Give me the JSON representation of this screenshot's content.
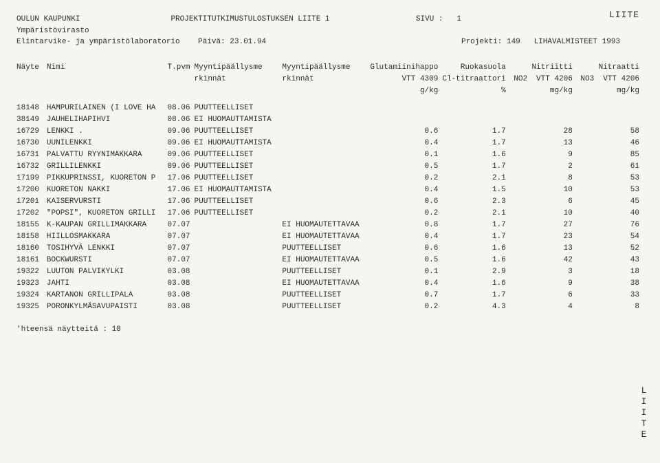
{
  "topRight": "LIITE",
  "sideRight": "LIITE",
  "header": {
    "org1": "OULUN KAUPUNKI",
    "org2": "Ympäristövirasto",
    "org3": "Elintarvike- ja ympäristölaboratorio",
    "docTitle": "PROJEKTITUTKIMUSTULOSTUKSEN LIITE 1",
    "dateLabel": "Päivä:",
    "dateValue": "23.01.94",
    "pageLabel": "SIVU :",
    "pageValue": "1",
    "projektiLabel": "Projekti:",
    "projektiValue": "149",
    "projektiName": "LIHAVALMISTEET 1993"
  },
  "columns": {
    "c1": "Näyte",
    "c2": "Nimi",
    "c3a": "T.pvm",
    "c3b": "Myyntipäällysme",
    "c3c": "rkinnät",
    "c4a": "Myyntipäällysme",
    "c4b": "rkinnät",
    "c5a": "Glutamiinihappo",
    "c5b": "VTT 4309",
    "c5c": "g/kg",
    "c6a": "Ruokasuola",
    "c6b": "Cl-titraattori",
    "c6c": "%",
    "c7a": "Nitriitti",
    "c7pre": "NO2",
    "c7b": "VTT 4206",
    "c7c": "mg/kg",
    "c8a": "Nitraatti",
    "c8pre": "NO3",
    "c8b": "VTT 4206",
    "c8c": "mg/kg"
  },
  "rows": [
    {
      "id": "18148",
      "nimi": "HAMPURILAINEN (I LOVE HA",
      "pvm": "08.06",
      "m1": "PUUTTEELLISET",
      "m2": "",
      "glut": "",
      "suola": "",
      "nit": "",
      "nat": ""
    },
    {
      "id": "38149",
      "nimi": "JAUHELIHAPIHVI",
      "pvm": "08.06",
      "m1": "EI HUOMAUTTAMISTA",
      "m2": "",
      "glut": "",
      "suola": "",
      "nit": "",
      "nat": ""
    },
    {
      "id": "16729",
      "nimi": "LENKKI   .",
      "pvm": "09.06",
      "m1": "PUUTTEELLISET",
      "m2": "",
      "glut": "0.6",
      "suola": "1.7",
      "nit": "28",
      "nat": "58"
    },
    {
      "id": "16730",
      "nimi": "UUNILENKKI",
      "pvm": "09.06",
      "m1": "EI HUOMAUTTAMISTA",
      "m2": "",
      "glut": "0.4",
      "suola": "1.7",
      "nit": "13",
      "nat": "46"
    },
    {
      "id": "16731",
      "nimi": "PALVATTU RYYNIMAKKARA",
      "pvm": "09.06",
      "m1": "PUUTTEELLISET",
      "m2": "",
      "glut": "0.1",
      "suola": "1.6",
      "nit": "9",
      "nat": "85"
    },
    {
      "id": "16732",
      "nimi": "GRILLILENKKI",
      "pvm": "09.06",
      "m1": "PUUTTEELLISET",
      "m2": "",
      "glut": "0.5",
      "suola": "1.7",
      "nit": "2",
      "nat": "61"
    },
    {
      "id": "17199",
      "nimi": "PIKKUPRINSSI, KUORETON P",
      "pvm": "17.06",
      "m1": "PUUTTEELLISET",
      "m2": "",
      "glut": "0.2",
      "suola": "2.1",
      "nit": "8",
      "nat": "53"
    },
    {
      "id": "17200",
      "nimi": "KUORETON NAKKI",
      "pvm": "17.06",
      "m1": "EI HUOMAUTTAMISTA",
      "m2": "",
      "glut": "0.4",
      "suola": "1.5",
      "nit": "10",
      "nat": "53"
    },
    {
      "id": "17201",
      "nimi": "KAISERVURSTI",
      "pvm": "17.06",
      "m1": "PUUTTEELLISET",
      "m2": "",
      "glut": "0.6",
      "suola": "2.3",
      "nit": "6",
      "nat": "45"
    },
    {
      "id": "17202",
      "nimi": "\"POPSI\", KUORETON GRILLI",
      "pvm": "17.06",
      "m1": "PUUTTEELLISET",
      "m2": "",
      "glut": "0.2",
      "suola": "2.1",
      "nit": "10",
      "nat": "40"
    },
    {
      "id": "18155",
      "nimi": "K-KAUPAN GRILLIMAKKARA",
      "pvm": "07.07",
      "m1": "",
      "m2": "EI HUOMAUTETTAVAA",
      "glut": "0.8",
      "suola": "1.7",
      "nit": "27",
      "nat": "76"
    },
    {
      "id": "18158",
      "nimi": "HIILLOSMAKKARA",
      "pvm": "07.07",
      "m1": "",
      "m2": "EI HUOMAUTETTAVAA",
      "glut": "0.4",
      "suola": "1.7",
      "nit": "23",
      "nat": "54"
    },
    {
      "id": "18160",
      "nimi": "TOSIHYVÄ LENKKI",
      "pvm": "07.07",
      "m1": "",
      "m2": "PUUTTEELLISET",
      "glut": "0.6",
      "suola": "1.6",
      "nit": "13",
      "nat": "52"
    },
    {
      "id": "18161",
      "nimi": "BOCKWURSTI",
      "pvm": "07.07",
      "m1": "",
      "m2": "EI HUOMAUTETTAVAA",
      "glut": "0.5",
      "suola": "1.6",
      "nit": "42",
      "nat": "43"
    },
    {
      "id": "19322",
      "nimi": "LUUTON PALVIKYLKI",
      "pvm": "03.08",
      "m1": "",
      "m2": "PUUTTEELLISET",
      "glut": "0.1",
      "suola": "2.9",
      "nit": "3",
      "nat": "18"
    },
    {
      "id": "19323",
      "nimi": "JAHTI",
      "pvm": "03.08",
      "m1": "",
      "m2": "EI HUOMAUTETTAVAA",
      "glut": "0.4",
      "suola": "1.6",
      "nit": "9",
      "nat": "38"
    },
    {
      "id": "19324",
      "nimi": "KARTANON GRILLIPALA",
      "pvm": "03.08",
      "m1": "",
      "m2": "PUUTTEELLISET",
      "glut": "0.7",
      "suola": "1.7",
      "nit": "6",
      "nat": "33"
    },
    {
      "id": "19325",
      "nimi": "PORONKYLMÄSAVUPAISTI",
      "pvm": "03.08",
      "m1": "",
      "m2": "PUUTTEELLISET",
      "glut": "0.2",
      "suola": "4.3",
      "nit": "4",
      "nat": "8"
    }
  ],
  "footer": "'hteensä näytteitä : 18",
  "widths": {
    "id": 42,
    "nimi": 170,
    "pvm": 42,
    "m1": 130,
    "m2": 130,
    "glut": 60,
    "suola": 80,
    "nit": 90,
    "nat": 90
  }
}
